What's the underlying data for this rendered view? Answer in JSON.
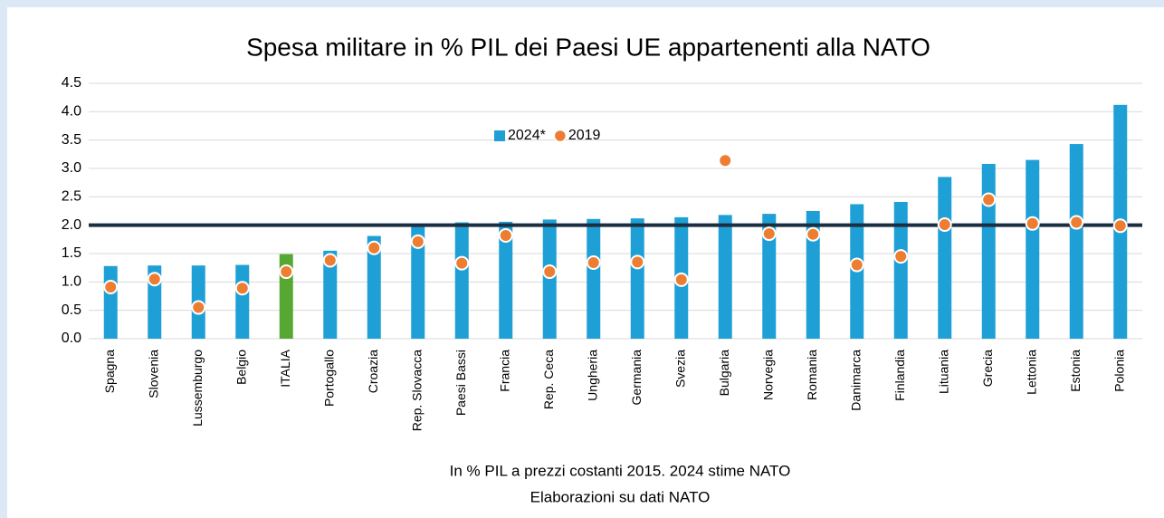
{
  "chart_data": {
    "type": "bar",
    "title": "Spesa militare in % PIL dei Paesi UE appartenenti alla NATO",
    "notes": [
      "In % PIL a prezzi costanti 2015. 2024 stime NATO",
      "Elaborazioni su dati NATO"
    ],
    "categories": [
      "Spagna",
      "Slovenia",
      "Lussemburgo",
      "Belgio",
      "ITALIA",
      "Portogallo",
      "Croazia",
      "Rep. Slovacca",
      "Paesi Bassi",
      "Francia",
      "Rep. Ceca",
      "Ungheria",
      "Germania",
      "Svezia",
      "Bulgaria",
      "Norvegia",
      "Romania",
      "Danimarca",
      "Finlandia",
      "Lituania",
      "Grecia",
      "Lettonia",
      "Estonia",
      "Polonia"
    ],
    "series": [
      {
        "name": "2024*",
        "kind": "bar",
        "color": "#1ea0d6",
        "colors": [
          "#1ea0d6",
          "#1ea0d6",
          "#1ea0d6",
          "#1ea0d6",
          "#56a832",
          "#1ea0d6",
          "#1ea0d6",
          "#1ea0d6",
          "#1ea0d6",
          "#1ea0d6",
          "#1ea0d6",
          "#1ea0d6",
          "#1ea0d6",
          "#1ea0d6",
          "#1ea0d6",
          "#1ea0d6",
          "#1ea0d6",
          "#1ea0d6",
          "#1ea0d6",
          "#1ea0d6",
          "#1ea0d6",
          "#1ea0d6",
          "#1ea0d6",
          "#1ea0d6"
        ],
        "values": [
          1.28,
          1.29,
          1.29,
          1.3,
          1.49,
          1.55,
          1.81,
          2.0,
          2.05,
          2.06,
          2.1,
          2.11,
          2.12,
          2.14,
          2.18,
          2.2,
          2.25,
          2.37,
          2.41,
          2.85,
          3.08,
          3.15,
          3.43,
          4.12
        ]
      },
      {
        "name": "2019",
        "kind": "marker",
        "color": "#ed7d31",
        "values": [
          0.91,
          1.05,
          0.55,
          0.89,
          1.18,
          1.38,
          1.6,
          1.71,
          1.33,
          1.82,
          1.18,
          1.34,
          1.35,
          1.04,
          3.14,
          1.85,
          1.84,
          1.3,
          1.45,
          2.01,
          2.45,
          2.03,
          2.05,
          1.99
        ]
      }
    ],
    "reference_line": {
      "value": 2.0,
      "color": "#1b2e42"
    },
    "ylim": [
      0,
      4.5
    ],
    "yticks": [
      {
        "value": 0,
        "label": "0.0"
      },
      0.5,
      {
        "value": 1,
        "label": "1.0"
      },
      1.5,
      {
        "value": 2,
        "label": "2.0"
      },
      2.5,
      {
        "value": 3,
        "label": "3.0"
      },
      3.5,
      {
        "value": 4,
        "label": "4.0"
      },
      4.5
    ],
    "grid": true
  }
}
